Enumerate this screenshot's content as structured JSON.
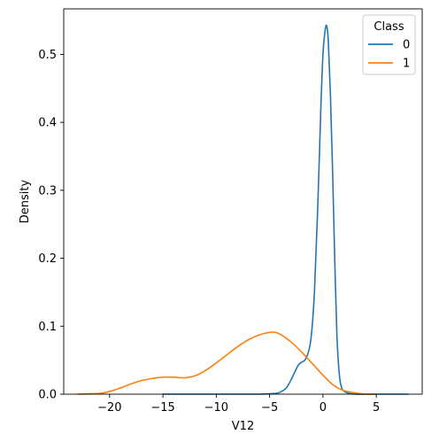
{
  "chart_data": {
    "type": "line",
    "title": "",
    "xlabel": "V12",
    "ylabel": "Density",
    "xlim": [
      -24.3,
      9.3
    ],
    "ylim": [
      0,
      0.567
    ],
    "xticks": [
      -20,
      -15,
      -10,
      -5,
      0,
      5
    ],
    "yticks": [
      0.0,
      0.1,
      0.2,
      0.3,
      0.4,
      0.5
    ],
    "xtick_labels": [
      "−20",
      "−15",
      "−10",
      "−5",
      "0",
      "5"
    ],
    "ytick_labels": [
      "0.0",
      "0.1",
      "0.2",
      "0.3",
      "0.4",
      "0.5"
    ],
    "grid": false,
    "legend": {
      "title": "Class",
      "placement": "top-right"
    },
    "series": [
      {
        "name": "0",
        "color": "#1f77b4",
        "x": [
          -15.0,
          -10.0,
          -6.0,
          -4.5,
          -4.0,
          -3.5,
          -3.2,
          -2.9,
          -2.6,
          -2.3,
          -2.0,
          -1.7,
          -1.4,
          -1.1,
          -0.8,
          -0.5,
          -0.2,
          0.0,
          0.2,
          0.35,
          0.5,
          0.7,
          0.9,
          1.1,
          1.3,
          1.5,
          1.7,
          2.0,
          2.5,
          3.0,
          4.0,
          6.0,
          8.0
        ],
        "values": [
          0.0,
          0.0,
          0.0,
          0.001,
          0.003,
          0.008,
          0.015,
          0.024,
          0.034,
          0.043,
          0.047,
          0.05,
          0.06,
          0.085,
          0.15,
          0.27,
          0.42,
          0.5,
          0.535,
          0.542,
          0.52,
          0.44,
          0.33,
          0.2,
          0.09,
          0.035,
          0.012,
          0.004,
          0.001,
          0.0,
          0.0,
          0.0,
          0.0
        ]
      },
      {
        "name": "1",
        "color": "#ff7f0e",
        "x": [
          -23.0,
          -21.0,
          -20.0,
          -19.0,
          -18.0,
          -17.0,
          -16.0,
          -15.0,
          -14.0,
          -13.0,
          -12.0,
          -11.0,
          -10.0,
          -9.0,
          -8.0,
          -7.0,
          -6.0,
          -5.0,
          -4.5,
          -4.0,
          -3.0,
          -2.0,
          -1.0,
          0.0,
          1.0,
          2.0,
          3.0,
          4.0,
          5.0
        ],
        "values": [
          0.0,
          0.001,
          0.004,
          0.009,
          0.015,
          0.02,
          0.023,
          0.025,
          0.025,
          0.024,
          0.027,
          0.035,
          0.046,
          0.058,
          0.07,
          0.08,
          0.087,
          0.091,
          0.091,
          0.088,
          0.077,
          0.062,
          0.045,
          0.028,
          0.013,
          0.005,
          0.002,
          0.0,
          0.0
        ]
      }
    ]
  }
}
